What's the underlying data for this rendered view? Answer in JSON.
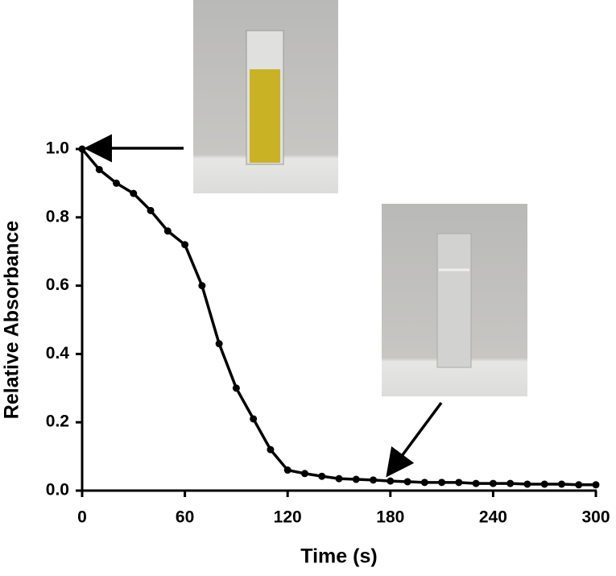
{
  "chart_data": {
    "type": "line",
    "xlabel": "Time (s)",
    "ylabel": "Relative Absorbance",
    "x": [
      0,
      10,
      20,
      30,
      40,
      50,
      60,
      70,
      80,
      90,
      100,
      110,
      120,
      130,
      140,
      150,
      160,
      170,
      180,
      190,
      200,
      210,
      220,
      230,
      240,
      250,
      260,
      270,
      280,
      290,
      300
    ],
    "values": [
      1.0,
      0.94,
      0.9,
      0.87,
      0.82,
      0.76,
      0.72,
      0.6,
      0.43,
      0.3,
      0.21,
      0.12,
      0.06,
      0.05,
      0.042,
      0.035,
      0.033,
      0.031,
      0.028,
      0.026,
      0.024,
      0.024,
      0.024,
      0.021,
      0.021,
      0.021,
      0.019,
      0.019,
      0.019,
      0.017,
      0.017
    ],
    "color": "#000000",
    "xlim": [
      0,
      300
    ],
    "xticks": [
      0,
      60,
      120,
      180,
      240,
      300
    ],
    "ylim": [
      0,
      1
    ],
    "yticks": [
      {
        "value": 0,
        "label": "0.0"
      },
      {
        "value": 0.2,
        "label": "0.2"
      },
      {
        "value": 0.4,
        "label": "0.4"
      },
      {
        "value": 0.6,
        "label": "0.6"
      },
      {
        "value": 0.8,
        "label": "0.8"
      },
      {
        "value": 1,
        "label": "1.0"
      }
    ],
    "grid": false
  }
}
